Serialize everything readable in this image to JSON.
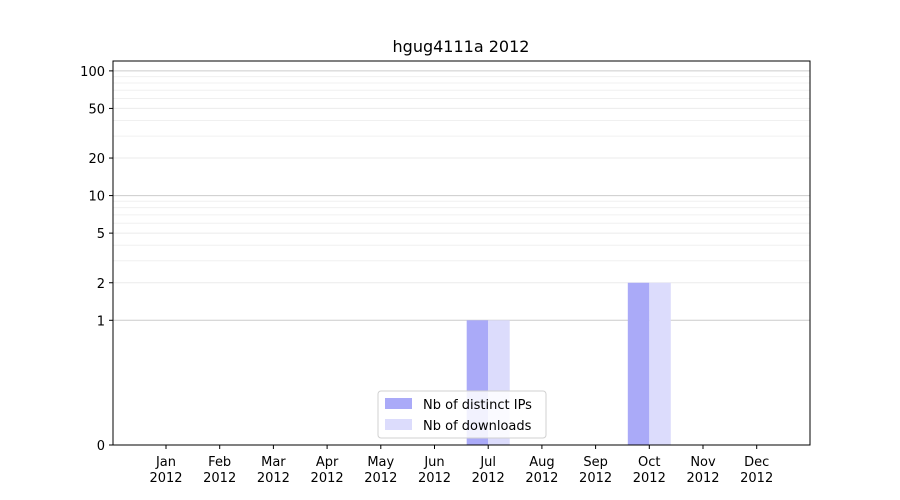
{
  "chart_data": {
    "type": "bar",
    "title": "hgug4111a 2012",
    "xlabel": "",
    "ylabel": "",
    "yscale": "symlog",
    "ylim": [
      0,
      120
    ],
    "yticks": [
      0,
      1,
      2,
      5,
      10,
      20,
      50,
      100
    ],
    "grid": true,
    "legend_position": "lower-center",
    "categories": [
      [
        "Jan",
        "2012"
      ],
      [
        "Feb",
        "2012"
      ],
      [
        "Mar",
        "2012"
      ],
      [
        "Apr",
        "2012"
      ],
      [
        "May",
        "2012"
      ],
      [
        "Jun",
        "2012"
      ],
      [
        "Jul",
        "2012"
      ],
      [
        "Aug",
        "2012"
      ],
      [
        "Sep",
        "2012"
      ],
      [
        "Oct",
        "2012"
      ],
      [
        "Nov",
        "2012"
      ],
      [
        "Dec",
        "2012"
      ]
    ],
    "series": [
      {
        "name": "Nb of distinct IPs",
        "color": "#aaaaf8",
        "values": [
          0,
          0,
          0,
          0,
          0,
          0,
          1,
          0,
          0,
          2,
          0,
          0
        ]
      },
      {
        "name": "Nb of downloads",
        "color": "#dcdcfc",
        "values": [
          0,
          0,
          0,
          0,
          0,
          0,
          1,
          0,
          0,
          2,
          0,
          0
        ]
      }
    ]
  }
}
